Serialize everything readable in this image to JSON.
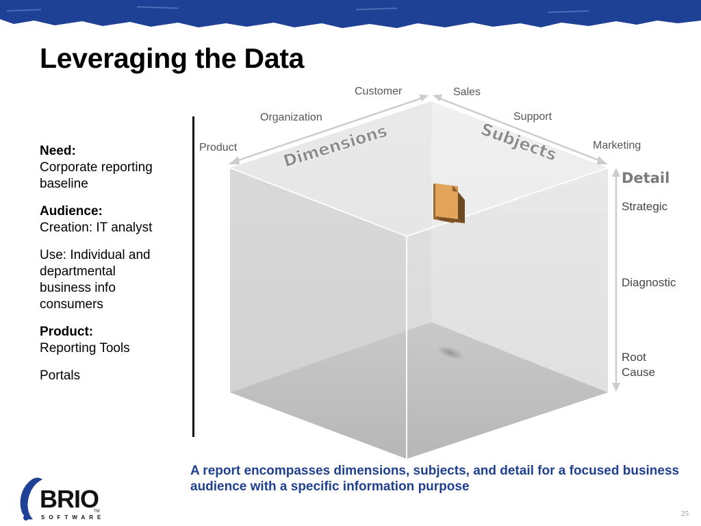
{
  "slide": {
    "title": "Leveraging the Data",
    "page_number": "25"
  },
  "left_panel": {
    "need_heading": "Need:",
    "need_text": "Corporate reporting baseline",
    "audience_heading": "Audience:",
    "audience_text": "Creation: IT analyst",
    "use_text": "Use: Individual and departmental business info consumers",
    "product_heading": "Product:",
    "product_text": "Reporting Tools",
    "portals_text": "Portals"
  },
  "cube": {
    "dimensions_label": "Dimensions",
    "subjects_label": "Subjects",
    "detail_label": "Detail",
    "dimensions": [
      "Customer",
      "Organization",
      "Product"
    ],
    "subjects": [
      "Sales",
      "Support",
      "Marketing"
    ],
    "detail_levels": [
      "Strategic",
      "Diagnostic",
      "Root Cause"
    ]
  },
  "caption": "A report encompasses dimensions, subjects, and detail for a focused business audience with a specific information purpose",
  "logo": {
    "name": "BRIO",
    "sub": "SOFTWARE",
    "tm": "TM"
  },
  "colors": {
    "banner": "#1e4196",
    "caption": "#1f3f8f",
    "report_icon": "#d9974a"
  }
}
